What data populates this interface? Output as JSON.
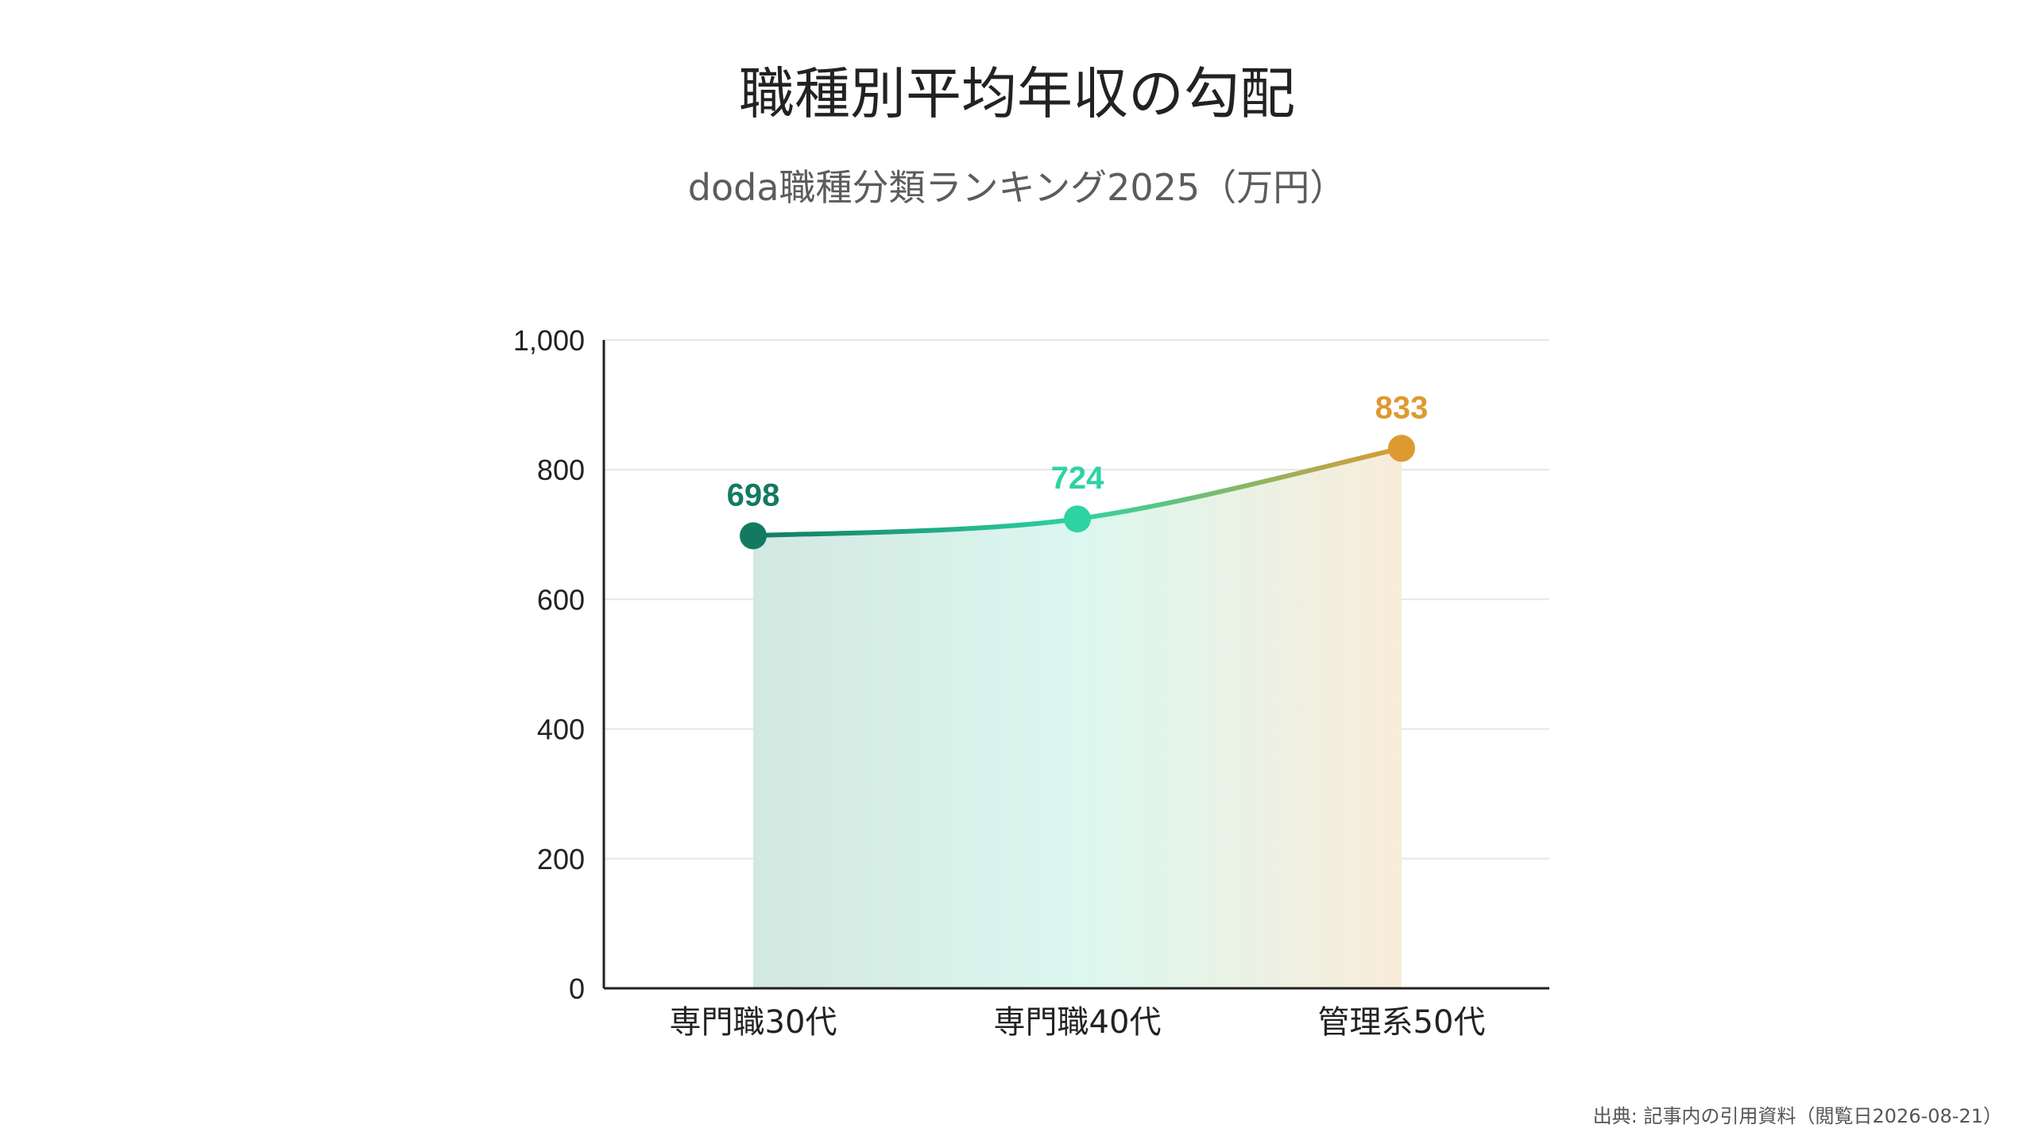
{
  "chart_data": {
    "type": "area",
    "title": "職種別平均年収の勾配",
    "subtitle": "doda職種分類ランキング2025（万円）",
    "categories": [
      "専門職30代",
      "専門職40代",
      "管理系50代"
    ],
    "values": [
      698,
      724,
      833
    ],
    "value_labels": [
      "698",
      "724",
      "833"
    ],
    "point_colors": [
      "#137a62",
      "#2ed3a2",
      "#dd9a30"
    ],
    "ylim": [
      0,
      1000
    ],
    "yticks": [
      0,
      200,
      400,
      600,
      800,
      1000
    ],
    "ytick_labels": [
      "0",
      "200",
      "400",
      "600",
      "800",
      "1,000"
    ],
    "grid": true,
    "legend": "none"
  },
  "source": "出典: 記事内の引用資料（閲覧日2026-08-21）"
}
